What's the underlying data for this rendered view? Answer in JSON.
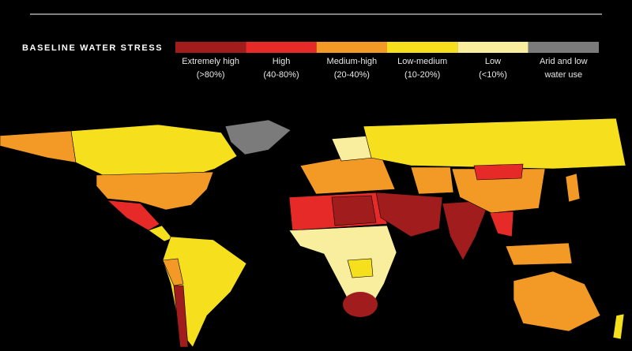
{
  "title": "BASELINE WATER STRESS",
  "legend": [
    {
      "lines": [
        "Extremely high",
        "(>80%)"
      ],
      "color": "#a11d1d"
    },
    {
      "lines": [
        "High",
        "(40-80%)"
      ],
      "color": "#e62a27"
    },
    {
      "lines": [
        "Medium-high",
        "(20-40%)"
      ],
      "color": "#f39a26"
    },
    {
      "lines": [
        "Low-medium",
        "(10-20%)"
      ],
      "color": "#f6df1c"
    },
    {
      "lines": [
        "Low",
        "(<10%)"
      ],
      "color": "#f8ee9e"
    },
    {
      "lines": [
        "Arid and low",
        "water use"
      ],
      "color": "#7b7b7b"
    }
  ]
}
